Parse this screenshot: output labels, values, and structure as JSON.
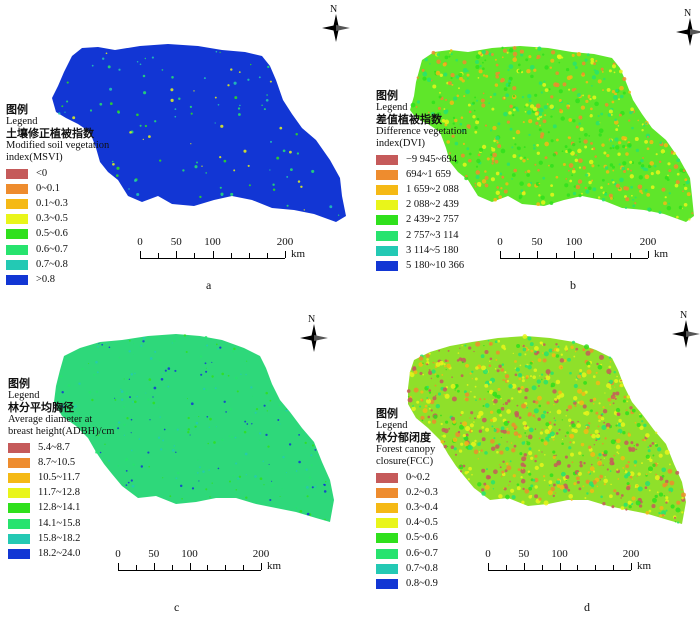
{
  "panels": [
    {
      "id": "a",
      "letter": "a",
      "legend_zh": "图例",
      "legend_en": "Legend",
      "name_zh": "土壤修正植被指数",
      "name_en_1": "Modified soil vegetation",
      "name_en_2": "index(MSVI)",
      "base_color": "#1236d4",
      "items": [
        {
          "label": "<0",
          "color": "#c55a5a"
        },
        {
          "label": "0~0.1",
          "color": "#ee8c2e"
        },
        {
          "label": "0.1~0.3",
          "color": "#f5b915"
        },
        {
          "label": "0.3~0.5",
          "color": "#e9f51a"
        },
        {
          "label": "0.5~0.6",
          "color": "#2fe01c"
        },
        {
          "label": "0.6~0.7",
          "color": "#27e36e"
        },
        {
          "label": "0.7~0.8",
          "color": "#23c9b4"
        },
        {
          "label": ">0.8",
          "color": "#1236d4"
        }
      ]
    },
    {
      "id": "b",
      "letter": "b",
      "legend_zh": "图例",
      "legend_en": "Legend",
      "name_zh": "差值植被指数",
      "name_en_1": "Difference vegetation",
      "name_en_2": "index(DVI)",
      "base_color": "#5fe62a",
      "items": [
        {
          "label": "−9 945~694",
          "color": "#c55a5a"
        },
        {
          "label": "694~1 659",
          "color": "#ee8c2e"
        },
        {
          "label": "1 659~2 088",
          "color": "#f5b915"
        },
        {
          "label": "2 088~2 439",
          "color": "#e9f51a"
        },
        {
          "label": "2 439~2 757",
          "color": "#2fe01c"
        },
        {
          "label": "2 757~3 114",
          "color": "#27e36e"
        },
        {
          "label": "3 114~5 180",
          "color": "#23c9b4"
        },
        {
          "label": "5 180~10 366",
          "color": "#1236d4"
        }
      ]
    },
    {
      "id": "c",
      "letter": "c",
      "legend_zh": "图例",
      "legend_en": "Legend",
      "name_zh": "林分平均胸径",
      "name_en_1": "Average diameter at",
      "name_en_2": "breast height(ADBH)/cm",
      "base_color": "#2ed87a",
      "items": [
        {
          "label": "5.4~8.7",
          "color": "#c55a5a"
        },
        {
          "label": "8.7~10.5",
          "color": "#ee8c2e"
        },
        {
          "label": "10.5~11.7",
          "color": "#f5b915"
        },
        {
          "label": "11.7~12.8",
          "color": "#e9f51a"
        },
        {
          "label": "12.8~14.1",
          "color": "#2fe01c"
        },
        {
          "label": "14.1~15.8",
          "color": "#27e36e"
        },
        {
          "label": "15.8~18.2",
          "color": "#23c9b4"
        },
        {
          "label": "18.2~24.0",
          "color": "#1236d4"
        }
      ]
    },
    {
      "id": "d",
      "letter": "d",
      "legend_zh": "图例",
      "legend_en": "Legend",
      "name_zh": "林分郁闭度",
      "name_en_1": "Forest canopy",
      "name_en_2": "closure(FCC)",
      "base_color": "#8fe02a",
      "items": [
        {
          "label": "0~0.2",
          "color": "#c55a5a"
        },
        {
          "label": "0.2~0.3",
          "color": "#ee8c2e"
        },
        {
          "label": "0.3~0.4",
          "color": "#f5b915"
        },
        {
          "label": "0.4~0.5",
          "color": "#e9f51a"
        },
        {
          "label": "0.5~0.6",
          "color": "#2fe01c"
        },
        {
          "label": "0.6~0.7",
          "color": "#27e36e"
        },
        {
          "label": "0.7~0.8",
          "color": "#23c9b4"
        },
        {
          "label": "0.8~0.9",
          "color": "#1236d4"
        }
      ]
    }
  ],
  "scale": {
    "labels": [
      "0",
      "50",
      "100",
      "200"
    ],
    "values": [
      0,
      50,
      100,
      200
    ],
    "unit": "km"
  },
  "north_label": "N"
}
